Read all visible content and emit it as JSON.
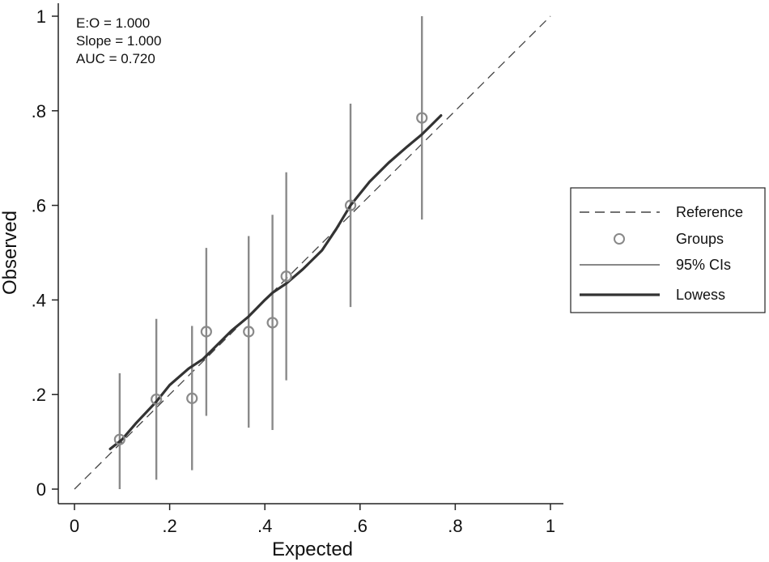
{
  "chart_data": {
    "type": "scatter",
    "xlabel": "Expected",
    "ylabel": "Observed",
    "xlim": [
      0,
      1
    ],
    "ylim": [
      0,
      1
    ],
    "x_ticks": [
      "0",
      ".2",
      ".4",
      ".6",
      ".8",
      "1"
    ],
    "y_ticks": [
      "0",
      ".2",
      ".4",
      ".6",
      ".8",
      "1"
    ],
    "grid": false,
    "stats": [
      "E:O = 1.000",
      "Slope = 1.000",
      "AUC = 0.720"
    ],
    "legend_position": "right",
    "legend": [
      "Reference",
      "Groups",
      "95% CIs",
      "Lowess"
    ],
    "series": [
      {
        "name": "Reference",
        "style": "dashed",
        "x": [
          0,
          1
        ],
        "y": [
          0,
          1
        ]
      },
      {
        "name": "Groups",
        "style": "hollow-circle",
        "x": [
          0.095,
          0.172,
          0.247,
          0.277,
          0.366,
          0.416,
          0.445,
          0.58,
          0.73
        ],
        "y": [
          0.105,
          0.19,
          0.192,
          0.333,
          0.333,
          0.352,
          0.45,
          0.6,
          0.785
        ]
      },
      {
        "name": "95% CIs",
        "style": "vertical-bars",
        "x": [
          0.095,
          0.172,
          0.247,
          0.277,
          0.366,
          0.416,
          0.445,
          0.58,
          0.73
        ],
        "low": [
          0.0,
          0.02,
          0.04,
          0.155,
          0.13,
          0.125,
          0.23,
          0.385,
          0.57
        ],
        "high": [
          0.245,
          0.36,
          0.345,
          0.51,
          0.535,
          0.58,
          0.67,
          0.815,
          1.0
        ]
      },
      {
        "name": "Lowess",
        "style": "solid-thick",
        "x": [
          0.075,
          0.1,
          0.13,
          0.172,
          0.2,
          0.24,
          0.27,
          0.3,
          0.33,
          0.366,
          0.4,
          0.416,
          0.445,
          0.48,
          0.52,
          0.55,
          0.58,
          0.62,
          0.66,
          0.7,
          0.73,
          0.77
        ],
        "y": [
          0.085,
          0.105,
          0.14,
          0.185,
          0.22,
          0.255,
          0.275,
          0.305,
          0.335,
          0.365,
          0.4,
          0.415,
          0.435,
          0.465,
          0.505,
          0.55,
          0.6,
          0.65,
          0.69,
          0.725,
          0.75,
          0.79
        ]
      }
    ]
  }
}
